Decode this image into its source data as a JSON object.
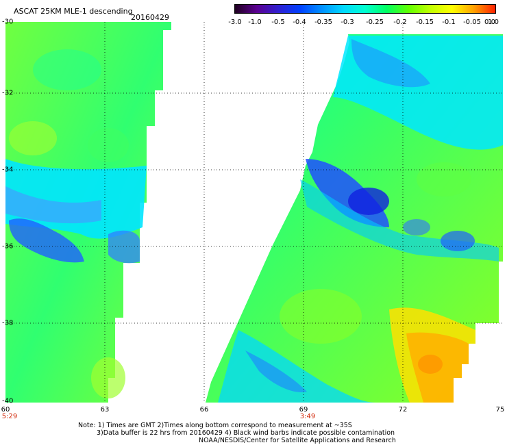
{
  "header": {
    "title": "ASCAT 25KM MLE-1 descending",
    "date": "20160429"
  },
  "colorbar": {
    "labels": [
      "-3.0",
      "-1.0",
      "-0.5",
      "-0.4",
      "-0.35",
      "-0.3",
      "-0.25",
      "-0.2",
      "-0.15",
      "-0.1",
      "-0.05",
      "0.0",
      "1.0"
    ],
    "colors": [
      "#200020",
      "#5a0090",
      "#3020d0",
      "#0040ff",
      "#0090ff",
      "#00d8ff",
      "#00ffd0",
      "#00ff60",
      "#60ff00",
      "#c0ff00",
      "#ffff00",
      "#ffa000",
      "#ff2000"
    ]
  },
  "map": {
    "lat_labels": [
      "-30",
      "-32",
      "-34",
      "-36",
      "-38",
      "-40"
    ],
    "lon_labels": [
      "60",
      "63",
      "66",
      "69",
      "72",
      "75"
    ],
    "time_labels": [
      "5:29",
      "3:49"
    ]
  },
  "notes": {
    "line1": "Note: 1) Times are GMT 2)Times along bottom correspond to measurement at ~35S",
    "line2": "3)Data buffer is 22 hrs from 20160429 4) Black wind barbs indicate possible contamination",
    "line3": "NOAA/NESDIS/Center for Satellite Applications and Research"
  }
}
